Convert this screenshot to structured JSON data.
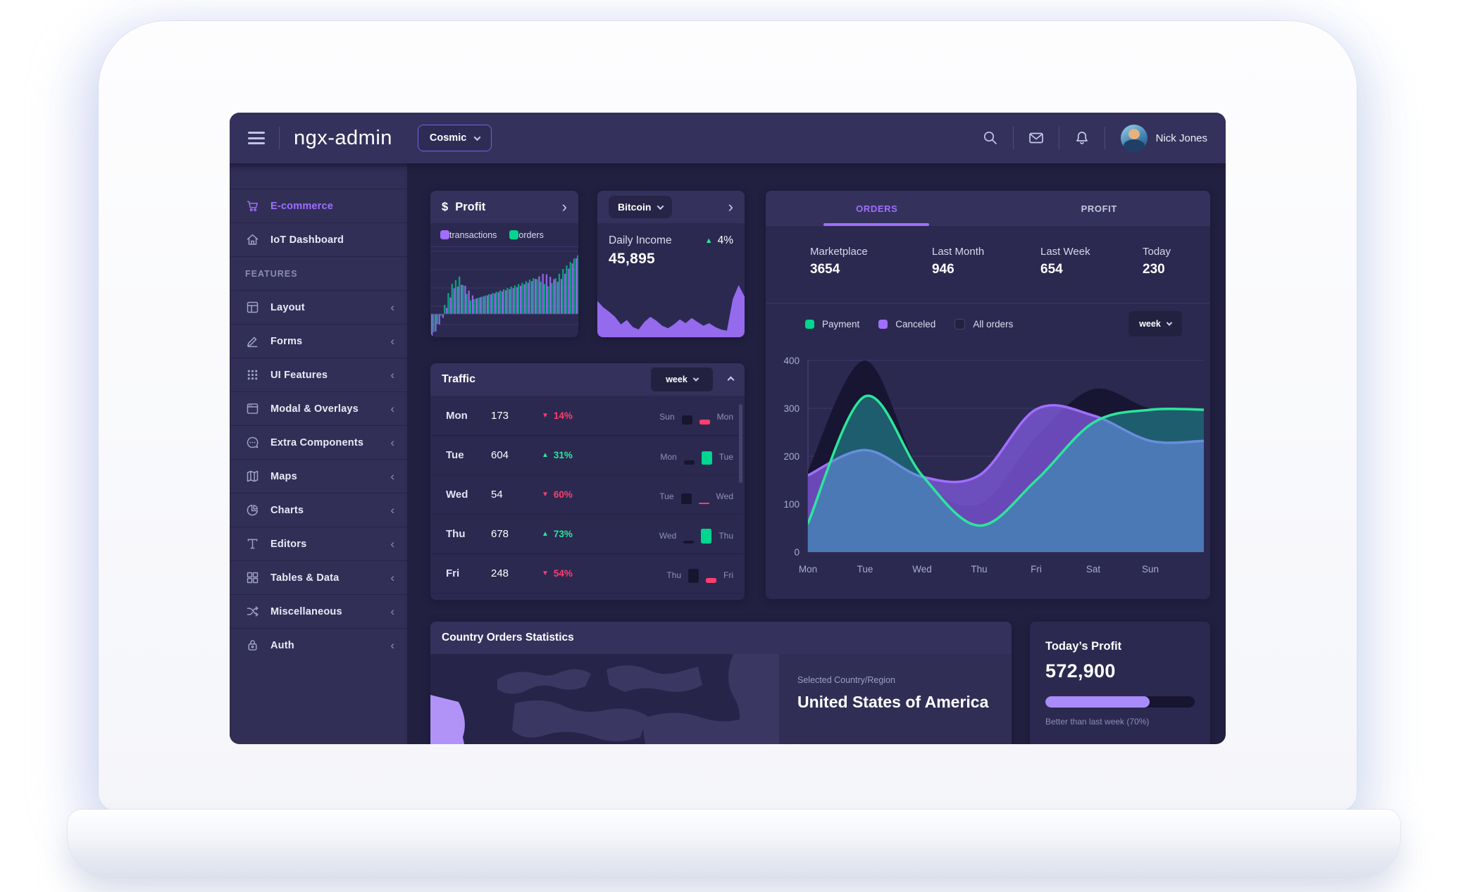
{
  "topbar": {
    "app_title": "ngx-admin",
    "theme_selector": "Cosmic",
    "user_name": "Nick Jones"
  },
  "sidebar": {
    "items": [
      {
        "label": "E-commerce",
        "icon": "cart-icon",
        "active": true,
        "expandable": false
      },
      {
        "label": "IoT Dashboard",
        "icon": "home-icon",
        "active": false,
        "expandable": false
      },
      {
        "label": "FEATURES",
        "type": "group"
      },
      {
        "label": "Layout",
        "icon": "layout-icon",
        "expandable": true
      },
      {
        "label": "Forms",
        "icon": "edit-icon",
        "expandable": true
      },
      {
        "label": "UI Features",
        "icon": "keypad-icon",
        "expandable": true
      },
      {
        "label": "Modal & Overlays",
        "icon": "browser-icon",
        "expandable": true
      },
      {
        "label": "Extra Components",
        "icon": "message-circle-icon",
        "expandable": true
      },
      {
        "label": "Maps",
        "icon": "map-icon",
        "expandable": true
      },
      {
        "label": "Charts",
        "icon": "pie-chart-icon",
        "expandable": true
      },
      {
        "label": "Editors",
        "icon": "text-icon",
        "expandable": true
      },
      {
        "label": "Tables & Data",
        "icon": "grid-icon",
        "expandable": true
      },
      {
        "label": "Miscellaneous",
        "icon": "shuffle-icon",
        "expandable": true
      },
      {
        "label": "Auth",
        "icon": "lock-icon",
        "expandable": true
      }
    ]
  },
  "cards": {
    "profit": {
      "currency_symbol": "$",
      "title": "Profit",
      "legend": [
        {
          "label": "transactions",
          "color": "#a16eff"
        },
        {
          "label": "orders",
          "color": "#00d68f"
        }
      ]
    },
    "bitcoin": {
      "selector_label": "Bitcoin",
      "metric_label": "Daily Income",
      "metric_value": "45,895",
      "delta": "4%",
      "delta_direction": "up"
    },
    "orders_profit": {
      "tabs": [
        {
          "label": "ORDERS",
          "active": true
        },
        {
          "label": "PROFIT",
          "active": false
        }
      ],
      "stats": [
        {
          "label": "Marketplace",
          "value": "3654"
        },
        {
          "label": "Last Month",
          "value": "946"
        },
        {
          "label": "Last Week",
          "value": "654"
        },
        {
          "label": "Today",
          "value": "230"
        }
      ],
      "legend": [
        {
          "label": "Payment",
          "type": "swatch",
          "color": "#00d68f"
        },
        {
          "label": "Canceled",
          "type": "swatch",
          "color": "#a16eff"
        },
        {
          "label": "All orders",
          "type": "checkbox"
        }
      ],
      "period_selector": "week"
    },
    "traffic": {
      "title": "Traffic",
      "period_selector": "week",
      "rows": [
        {
          "day": "Mon",
          "value": "173",
          "direction": "down",
          "delta": "14%",
          "compare_prev": "Sun",
          "compare_cur": "Mon",
          "prev_bar": 13,
          "cur_bar": 7
        },
        {
          "day": "Tue",
          "value": "604",
          "direction": "up",
          "delta": "31%",
          "compare_prev": "Mon",
          "compare_cur": "Tue",
          "prev_bar": 6,
          "cur_bar": 19
        },
        {
          "day": "Wed",
          "value": "54",
          "direction": "down",
          "delta": "60%",
          "compare_prev": "Tue",
          "compare_cur": "Wed",
          "prev_bar": 15,
          "cur_bar": 2
        },
        {
          "day": "Thu",
          "value": "678",
          "direction": "up",
          "delta": "73%",
          "compare_prev": "Wed",
          "compare_cur": "Thu",
          "prev_bar": 4,
          "cur_bar": 21
        },
        {
          "day": "Fri",
          "value": "248",
          "direction": "down",
          "delta": "54%",
          "compare_prev": "Thu",
          "compare_cur": "Fri",
          "prev_bar": 20,
          "cur_bar": 7
        }
      ]
    },
    "country": {
      "title": "Country Orders Statistics",
      "selected_label": "Selected Country/Region",
      "selected_country": "United States of America"
    },
    "today_profit": {
      "title": "Today’s Profit",
      "value": "572,900",
      "caption": "Better than last week (70%)",
      "progress_percent": 70
    }
  },
  "chart_data": [
    {
      "name": "profit-weekly-mini",
      "type": "bar",
      "title": "Profit",
      "ylim": [
        -50,
        100
      ],
      "grid": true,
      "series": [
        {
          "name": "transactions",
          "color": "#a16eff",
          "x": [
            0,
            8,
            15,
            22,
            30,
            45,
            60,
            70,
            78,
            88,
            100
          ],
          "values": [
            -40,
            -5,
            42,
            50,
            25,
            35,
            45,
            55,
            68,
            52,
            92
          ]
        },
        {
          "name": "orders",
          "color": "#00d68f",
          "x": [
            0,
            6,
            12,
            18,
            25,
            35,
            50,
            62,
            70,
            80,
            90,
            100
          ],
          "values": [
            -30,
            2,
            48,
            62,
            22,
            30,
            42,
            52,
            60,
            45,
            75,
            97
          ]
        }
      ]
    },
    {
      "name": "bitcoin-daily-income",
      "type": "area",
      "color": "#9b6ef5",
      "ylim": [
        0,
        100
      ],
      "values": [
        55,
        45,
        38,
        30,
        18,
        25,
        14,
        10,
        22,
        30,
        24,
        16,
        12,
        18,
        26,
        20,
        28,
        22,
        16,
        20,
        14,
        10,
        8,
        58,
        80,
        62
      ]
    },
    {
      "name": "orders-weekly",
      "type": "area",
      "categories": [
        "Mon",
        "Tue",
        "Wed",
        "Thu",
        "Fri",
        "Sat",
        "Sun"
      ],
      "yticks": [
        0,
        100,
        200,
        300,
        400
      ],
      "ylim": [
        0,
        400
      ],
      "grid": true,
      "legend_position": "top",
      "series": [
        {
          "name": "All orders",
          "color": "#191735",
          "fill": "rgba(22,20,48,0.92)",
          "stroke": "none",
          "values": [
            170,
            400,
            160,
            100,
            240,
            340,
            300
          ]
        },
        {
          "name": "Canceled",
          "color": "#a16eff",
          "fill": "rgba(128,88,220,0.78)",
          "stroke": "#a16eff",
          "values": [
            160,
            213,
            157,
            160,
            298,
            285,
            232
          ]
        },
        {
          "name": "Payment",
          "color": "#2ce69b",
          "fill": "rgba(40,178,180,0.46)",
          "stroke": "#2ce69b",
          "values": [
            60,
            325,
            160,
            55,
            150,
            270,
            297
          ]
        }
      ]
    },
    {
      "name": "traffic-week",
      "type": "table",
      "columns": [
        "day",
        "value",
        "delta"
      ],
      "rows": [
        [
          "Mon",
          173,
          "-14%"
        ],
        [
          "Tue",
          604,
          "+31%"
        ],
        [
          "Wed",
          54,
          "-60%"
        ],
        [
          "Thu",
          678,
          "+73%"
        ],
        [
          "Fri",
          248,
          "-54%"
        ]
      ]
    }
  ]
}
